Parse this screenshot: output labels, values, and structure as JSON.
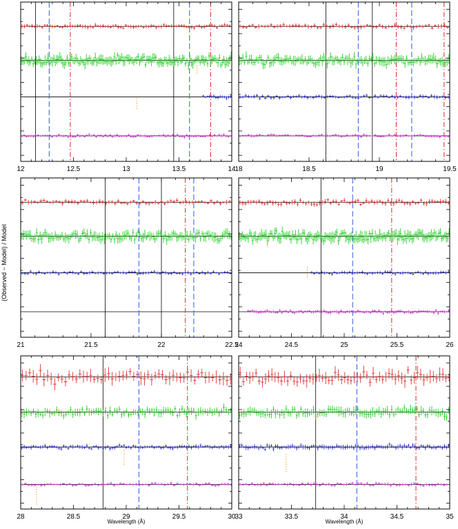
{
  "figure": {
    "ylabel": "(Observed − Model) / Model"
  },
  "chart_data": [
    {
      "type": "scatter",
      "xlim": [
        12,
        14
      ],
      "xticks": [
        "12",
        "12.5",
        "13",
        "13.5",
        "14"
      ],
      "xlabel": "",
      "offsets": [
        0.66,
        0.38,
        0.08,
        -0.24
      ],
      "series": [
        {
          "color": "#e03030",
          "offset": 0.66,
          "range": [
            12,
            14
          ],
          "step": 0.024,
          "scatter": 0.014
        },
        {
          "color": "#22cc22",
          "offset": 0.38,
          "range": [
            12,
            14
          ],
          "step": 0.014,
          "scatter": 0.035
        },
        {
          "color": "#3333cc",
          "offset": 0.08,
          "range": [
            13.72,
            14
          ],
          "step": 0.02,
          "scatter": 0.012
        },
        {
          "color": "#dd33dd",
          "offset": -0.24,
          "range": [
            12,
            14
          ],
          "step": 0.022,
          "scatter": 0.01
        }
      ],
      "solid_lines": [
        12.14,
        13.45
      ],
      "dashed_lines": [
        12.27,
        13.6
      ],
      "dashdot_lines": [
        12.47,
        13.8
      ],
      "dotted_marks": [
        {
          "x": 13.1,
          "y": 0.07,
          "len": 0.09
        },
        {
          "x": 13.67,
          "y": 0.34,
          "len": 0.08
        }
      ]
    },
    {
      "type": "scatter",
      "xlim": [
        18,
        19.5
      ],
      "xticks": [
        "18",
        "18.5",
        "19",
        "19.5"
      ],
      "xlabel": "",
      "offsets": [
        0.66,
        0.38,
        0.08,
        -0.24
      ],
      "series": [
        {
          "color": "#e03030",
          "offset": 0.66,
          "range": [
            18,
            19.5
          ],
          "step": 0.022,
          "scatter": 0.016
        },
        {
          "color": "#22cc22",
          "offset": 0.38,
          "range": [
            18,
            19.5
          ],
          "step": 0.012,
          "scatter": 0.035
        },
        {
          "color": "#3333cc",
          "offset": 0.08,
          "range": [
            18,
            19.5
          ],
          "step": 0.02,
          "scatter": 0.013
        },
        {
          "color": "#dd33dd",
          "offset": -0.24,
          "range": [
            18,
            19.5
          ],
          "step": 0.02,
          "scatter": 0.01
        }
      ],
      "solid_lines": [
        18.62,
        18.95
      ],
      "dashed_lines": [
        18.85,
        19.23
      ],
      "dashdot_lines": [
        19.12,
        19.46
      ],
      "dotted_marks": []
    },
    {
      "type": "scatter",
      "xlim": [
        21,
        22.5
      ],
      "xticks": [
        "21",
        "21.5",
        "22",
        "22.5"
      ],
      "xlabel": "",
      "offsets": [
        0.66,
        0.38,
        0.08,
        -0.24
      ],
      "series": [
        {
          "color": "#e03030",
          "offset": 0.66,
          "range": [
            21,
            22.5
          ],
          "step": 0.022,
          "scatter": 0.016
        },
        {
          "color": "#22cc22",
          "offset": 0.38,
          "range": [
            21,
            22.5
          ],
          "step": 0.012,
          "scatter": 0.035
        },
        {
          "color": "#3333cc",
          "offset": 0.08,
          "range": [
            21,
            22.5
          ],
          "step": 0.02,
          "scatter": 0.012
        }
      ],
      "solid_lines": [
        21.6,
        22.0
      ],
      "dashed_lines": [
        21.84,
        22.23
      ],
      "dashdot_lines": [
        22.17
      ],
      "dotted_marks": []
    },
    {
      "type": "scatter",
      "xlim": [
        24,
        26
      ],
      "xticks": [
        "24",
        "24.5",
        "25",
        "25.5",
        "26"
      ],
      "xlabel": "",
      "offsets": [
        0.66,
        0.38,
        0.08,
        -0.24
      ],
      "series": [
        {
          "color": "#e03030",
          "offset": 0.66,
          "range": [
            24,
            26
          ],
          "step": 0.026,
          "scatter": 0.018
        },
        {
          "color": "#22cc22",
          "offset": 0.38,
          "range": [
            24,
            26
          ],
          "step": 0.014,
          "scatter": 0.04
        },
        {
          "color": "#3333cc",
          "offset": 0.08,
          "range": [
            24.68,
            26
          ],
          "step": 0.024,
          "scatter": 0.012
        },
        {
          "color": "#dd33dd",
          "offset": -0.24,
          "range": [
            24.08,
            26
          ],
          "step": 0.02,
          "scatter": 0.012
        }
      ],
      "solid_lines": [
        24.78
      ],
      "dashed_lines": [
        25.08
      ],
      "dashdot_lines": [
        25.45
      ],
      "dotted_marks": [
        {
          "x": 24.65,
          "y": 0.13,
          "len": 0.09
        }
      ]
    },
    {
      "type": "scatter",
      "xlim": [
        28,
        30
      ],
      "xticks": [
        "28",
        "28.5",
        "29",
        "29.5",
        "30"
      ],
      "xlabel": "Wavelength (Å)",
      "offsets": [
        0.68,
        0.38,
        0.08,
        -0.24
      ],
      "series": [
        {
          "color": "#e03030",
          "offset": 0.68,
          "range": [
            28,
            30
          ],
          "step": 0.034,
          "scatter": 0.05
        },
        {
          "color": "#22cc22",
          "offset": 0.38,
          "range": [
            28,
            30
          ],
          "step": 0.022,
          "scatter": 0.03
        },
        {
          "color": "#3333cc",
          "offset": 0.08,
          "range": [
            28,
            30
          ],
          "step": 0.022,
          "scatter": 0.015
        },
        {
          "color": "#dd33dd",
          "offset": -0.24,
          "range": [
            28,
            30
          ],
          "step": 0.03,
          "scatter": 0.012
        }
      ],
      "solid_lines": [
        28.78
      ],
      "dashed_lines": [
        29.12
      ],
      "dashdot_lines": [
        29.58
      ],
      "dotted_marks": [
        {
          "x": 28.15,
          "y": -0.26,
          "len": 0.16
        },
        {
          "x": 28.98,
          "y": 0.06,
          "len": 0.14
        }
      ]
    },
    {
      "type": "scatter",
      "xlim": [
        33,
        35
      ],
      "xticks": [
        "33",
        "33.5",
        "34",
        "34.5",
        "35"
      ],
      "xlabel": "Wavelength (Å)",
      "offsets": [
        0.68,
        0.38,
        0.08,
        -0.24
      ],
      "series": [
        {
          "color": "#e03030",
          "offset": 0.68,
          "range": [
            33,
            35
          ],
          "step": 0.03,
          "scatter": 0.05
        },
        {
          "color": "#22cc22",
          "offset": 0.38,
          "range": [
            33,
            35
          ],
          "step": 0.02,
          "scatter": 0.035
        },
        {
          "color": "#3333cc",
          "offset": 0.08,
          "range": [
            33,
            35
          ],
          "step": 0.02,
          "scatter": 0.018
        },
        {
          "color": "#dd33dd",
          "offset": -0.24,
          "range": [
            33,
            35
          ],
          "step": 0.028,
          "scatter": 0.012
        }
      ],
      "solid_lines": [
        33.73
      ],
      "dashed_lines": [
        34.12
      ],
      "dashdot_lines": [
        34.68
      ],
      "dotted_marks": [
        {
          "x": 33.45,
          "y": 0.02,
          "len": 0.16
        }
      ]
    }
  ]
}
